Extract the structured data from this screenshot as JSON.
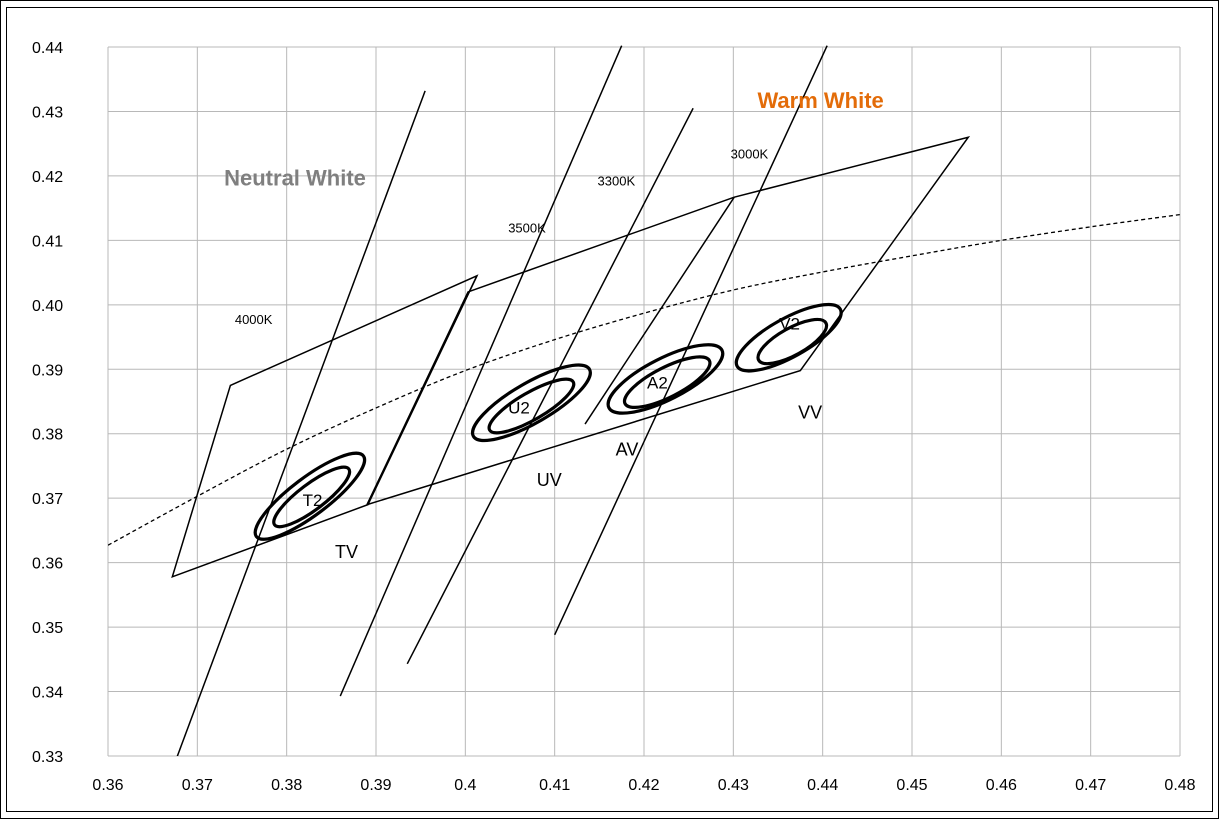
{
  "chart_data": {
    "type": "scatter",
    "title": "",
    "xlabel": "",
    "ylabel": "",
    "xlim": [
      0.36,
      0.48
    ],
    "ylim": [
      0.33,
      0.44
    ],
    "x_ticks": [
      0.36,
      0.37,
      0.38,
      0.39,
      0.4,
      0.41,
      0.42,
      0.43,
      0.44,
      0.45,
      0.46,
      0.47,
      0.48
    ],
    "y_ticks": [
      0.33,
      0.34,
      0.35,
      0.36,
      0.37,
      0.38,
      0.39,
      0.4,
      0.41,
      0.42,
      0.43,
      0.44
    ],
    "x_tick_labels": [
      "0.36",
      "0.37",
      "0.38",
      "0.39",
      "0.4",
      "0.41",
      "0.42",
      "0.43",
      "0.44",
      "0.45",
      "0.46",
      "0.47",
      "0.48"
    ],
    "y_tick_labels": [
      "0.33",
      "0.34",
      "0.35",
      "0.36",
      "0.37",
      "0.38",
      "0.39",
      "0.40",
      "0.41",
      "0.42",
      "0.43",
      "0.44"
    ],
    "grid": true,
    "colors": {
      "grid": "#b8b8b8",
      "lines": "#000000",
      "neutral_white": "#7f7f7f",
      "warm_white": "#e36c09"
    },
    "family_labels": [
      {
        "text": "Neutral White",
        "x": 0.373,
        "y": 0.4185,
        "color": "#7f7f7f"
      },
      {
        "text": "Warm White",
        "x": 0.4327,
        "y": 0.4305,
        "color": "#e36c09"
      }
    ],
    "blackbody_locus": {
      "style": "dashed",
      "points": [
        [
          0.36,
          0.3627
        ],
        [
          0.37,
          0.3703
        ],
        [
          0.38,
          0.3776
        ],
        [
          0.39,
          0.384
        ],
        [
          0.4,
          0.3898
        ],
        [
          0.41,
          0.3946
        ],
        [
          0.42,
          0.3987
        ],
        [
          0.43,
          0.4023
        ],
        [
          0.44,
          0.4051
        ],
        [
          0.45,
          0.4076
        ],
        [
          0.46,
          0.41
        ],
        [
          0.47,
          0.4121
        ],
        [
          0.48,
          0.414
        ]
      ]
    },
    "isotherm_lines": [
      {
        "cct": "4000K",
        "x1": 0.3675,
        "y1": 0.329,
        "x2": 0.3955,
        "y2": 0.4332
      },
      {
        "cct": "3500K",
        "x1": 0.386,
        "y1": 0.3393,
        "x2": 0.4175,
        "y2": 0.4402
      },
      {
        "cct": "3300K",
        "x1": 0.3935,
        "y1": 0.3443,
        "x2": 0.4255,
        "y2": 0.4305
      },
      {
        "cct": "3000K",
        "x1": 0.41,
        "y1": 0.3488,
        "x2": 0.4405,
        "y2": 0.4402
      }
    ],
    "cct_labels": [
      {
        "text": "4000K",
        "x": 0.3742,
        "y": 0.397
      },
      {
        "text": "3500K",
        "x": 0.4048,
        "y": 0.4112
      },
      {
        "text": "3300K",
        "x": 0.4148,
        "y": 0.4185
      },
      {
        "text": "3000K",
        "x": 0.4297,
        "y": 0.4227
      }
    ],
    "bins": [
      {
        "name": "TV",
        "corners": [
          [
            0.3737,
            0.3875
          ],
          [
            0.4013,
            0.4045
          ],
          [
            0.3891,
            0.369
          ],
          [
            0.3672,
            0.3578
          ]
        ]
      },
      {
        "name": "UV-AV-VV",
        "corners": [
          [
            0.4003,
            0.402
          ],
          [
            0.4301,
            0.4167
          ],
          [
            0.4563,
            0.426
          ],
          [
            0.4375,
            0.3898
          ],
          [
            0.389,
            0.369
          ]
        ]
      }
    ],
    "bin_dividers": [
      {
        "x1": 0.4013,
        "y1": 0.4045,
        "x2": 0.389,
        "y2": 0.369
      },
      {
        "x1": 0.4301,
        "y1": 0.4167,
        "x2": 0.4134,
        "y2": 0.3815
      }
    ],
    "ellipses": [
      {
        "name": "T2-outer",
        "cx": 0.3826,
        "cy": 0.3703,
        "rx": 0.0075,
        "ry": 0.0029,
        "angle_deg": -37
      },
      {
        "name": "T2-inner",
        "cx": 0.3828,
        "cy": 0.3702,
        "rx": 0.0052,
        "ry": 0.002,
        "angle_deg": -37
      },
      {
        "name": "U2-outer",
        "cx": 0.4074,
        "cy": 0.3848,
        "rx": 0.0075,
        "ry": 0.0031,
        "angle_deg": -30
      },
      {
        "name": "U2-inner",
        "cx": 0.4074,
        "cy": 0.3843,
        "rx": 0.0054,
        "ry": 0.0021,
        "angle_deg": -30
      },
      {
        "name": "A2-outer",
        "cx": 0.4224,
        "cy": 0.3885,
        "rx": 0.0071,
        "ry": 0.0032,
        "angle_deg": -27
      },
      {
        "name": "A2-inner",
        "cx": 0.4226,
        "cy": 0.388,
        "rx": 0.0053,
        "ry": 0.0023,
        "angle_deg": -27
      },
      {
        "name": "V2-outer",
        "cx": 0.4362,
        "cy": 0.3949,
        "rx": 0.0066,
        "ry": 0.003,
        "angle_deg": -29
      },
      {
        "name": "V2-inner",
        "cx": 0.4366,
        "cy": 0.3943,
        "rx": 0.0043,
        "ry": 0.0021,
        "angle_deg": -29
      }
    ],
    "region_labels": [
      {
        "text": "T2",
        "x": 0.3829,
        "y": 0.3688,
        "size": "small"
      },
      {
        "text": "TV",
        "x": 0.3867,
        "y": 0.3607,
        "size": "large"
      },
      {
        "text": "U2",
        "x": 0.406,
        "y": 0.3831,
        "size": "small"
      },
      {
        "text": "UV",
        "x": 0.4094,
        "y": 0.3719,
        "size": "large"
      },
      {
        "text": "A2",
        "x": 0.4215,
        "y": 0.387,
        "size": "small"
      },
      {
        "text": "AV",
        "x": 0.4181,
        "y": 0.3766,
        "size": "large"
      },
      {
        "text": "V2",
        "x": 0.4363,
        "y": 0.3962,
        "size": "small"
      },
      {
        "text": "VV",
        "x": 0.4386,
        "y": 0.3824,
        "size": "large"
      }
    ]
  }
}
